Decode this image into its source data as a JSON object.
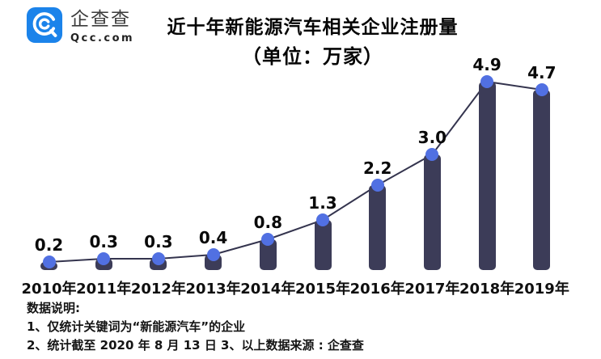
{
  "header": {
    "brand_cn": "企查查",
    "brand_domain": "Qcc.com",
    "brand_color": "#1b83ea"
  },
  "chart_data": {
    "type": "bar",
    "overlay": "line-with-markers",
    "title": "近十年新能源汽车相关企业注册量",
    "unit_label": "（单位：万家）",
    "categories": [
      "2010年",
      "2011年",
      "2012年",
      "2013年",
      "2014年",
      "2015年",
      "2016年",
      "2017年",
      "2018年",
      "2019年"
    ],
    "values": [
      0.2,
      0.3,
      0.3,
      0.4,
      0.8,
      1.3,
      2.2,
      3.0,
      4.9,
      4.7
    ],
    "value_labels": [
      "0.2",
      "0.3",
      "0.3",
      "0.4",
      "0.8",
      "1.3",
      "2.2",
      "3.0",
      "4.9",
      "4.7"
    ],
    "ylim": [
      0,
      5
    ],
    "grid": false,
    "legend": false,
    "bar_color": "#3c3c58",
    "dot_color": "#5170e2",
    "line_color": "#34344e",
    "label_color": "#0a0a0a"
  },
  "notes": {
    "heading": "数据说明:",
    "line1": "1、仅统计关键词为“新能源汽车”的企业",
    "line2": "2、统计截至 2020 年 8 月 13 日  3、以上数据来源 : 企查查"
  }
}
